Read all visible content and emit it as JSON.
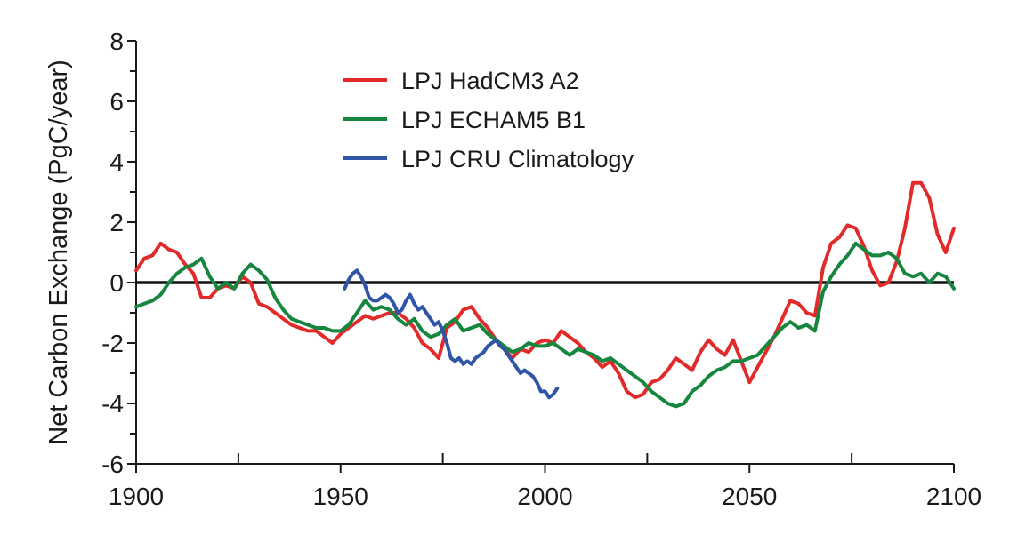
{
  "chart_data": {
    "type": "line",
    "title": "",
    "xlabel": "",
    "ylabel": "Net Carbon Exchange (PgC/year)",
    "xlim": [
      1900,
      2100
    ],
    "ylim": [
      -6,
      8
    ],
    "x_ticks": [
      "1900",
      "1950",
      "2000",
      "2050",
      "2100"
    ],
    "y_ticks": [
      "8",
      "6",
      "4",
      "2",
      "0",
      "-2",
      "-4",
      "-6"
    ],
    "x_tick_values": [
      1900,
      1950,
      2000,
      2050,
      2100
    ],
    "y_tick_values": [
      8,
      6,
      4,
      2,
      0,
      -2,
      -4,
      -6
    ],
    "x_minor_ticks": [
      1925,
      1975,
      2025,
      2075
    ],
    "y_minor_ticks": [
      7,
      5,
      3,
      1,
      -1,
      -3,
      -5
    ],
    "reference_line": 0,
    "grid": false,
    "legend_position": "top-center",
    "series": [
      {
        "name": "LPJ HadCM3 A2",
        "color": "#e32a2a",
        "x": [
          1900,
          1902,
          1904,
          1906,
          1908,
          1910,
          1912,
          1914,
          1916,
          1918,
          1920,
          1922,
          1924,
          1926,
          1928,
          1930,
          1932,
          1934,
          1936,
          1938,
          1940,
          1942,
          1944,
          1946,
          1948,
          1950,
          1952,
          1954,
          1956,
          1958,
          1960,
          1962,
          1964,
          1966,
          1968,
          1970,
          1972,
          1974,
          1976,
          1978,
          1980,
          1982,
          1984,
          1986,
          1988,
          1990,
          1992,
          1994,
          1996,
          1998,
          2000,
          2002,
          2004,
          2006,
          2008,
          2010,
          2012,
          2014,
          2016,
          2018,
          2020,
          2022,
          2024,
          2026,
          2028,
          2030,
          2032,
          2034,
          2036,
          2038,
          2040,
          2042,
          2044,
          2046,
          2048,
          2050,
          2052,
          2054,
          2056,
          2058,
          2060,
          2062,
          2064,
          2066,
          2068,
          2070,
          2072,
          2074,
          2076,
          2078,
          2080,
          2082,
          2084,
          2086,
          2088,
          2090,
          2092,
          2094,
          2096,
          2098,
          2100
        ],
        "values": [
          0.4,
          0.8,
          0.9,
          1.3,
          1.1,
          1.0,
          0.6,
          0.3,
          -0.5,
          -0.5,
          -0.2,
          -0.1,
          -0.2,
          0.2,
          0.0,
          -0.7,
          -0.8,
          -1.0,
          -1.2,
          -1.4,
          -1.5,
          -1.6,
          -1.6,
          -1.8,
          -2.0,
          -1.7,
          -1.5,
          -1.3,
          -1.1,
          -1.2,
          -1.1,
          -1.0,
          -1.0,
          -1.2,
          -1.5,
          -2.0,
          -2.2,
          -2.5,
          -1.5,
          -1.3,
          -0.9,
          -0.8,
          -1.2,
          -1.5,
          -1.9,
          -2.2,
          -2.5,
          -2.2,
          -2.3,
          -2.0,
          -1.9,
          -2.0,
          -1.6,
          -1.8,
          -2.0,
          -2.3,
          -2.5,
          -2.8,
          -2.6,
          -3.0,
          -3.6,
          -3.8,
          -3.7,
          -3.3,
          -3.2,
          -2.9,
          -2.5,
          -2.7,
          -2.9,
          -2.3,
          -1.9,
          -2.2,
          -2.4,
          -1.9,
          -2.6,
          -3.3,
          -2.8,
          -2.3,
          -1.8,
          -1.2,
          -0.6,
          -0.7,
          -1.0,
          -1.1,
          0.5,
          1.3,
          1.5,
          1.9,
          1.8,
          1.2,
          0.4,
          -0.1,
          0.0,
          0.7,
          1.8,
          3.3,
          3.3,
          2.8,
          1.6,
          1.0,
          1.8
        ]
      },
      {
        "name": "LPJ ECHAM5 B1",
        "color": "#16863f",
        "x": [
          1900,
          1902,
          1904,
          1906,
          1908,
          1910,
          1912,
          1914,
          1916,
          1918,
          1920,
          1922,
          1924,
          1926,
          1928,
          1930,
          1932,
          1934,
          1936,
          1938,
          1940,
          1942,
          1944,
          1946,
          1948,
          1950,
          1952,
          1954,
          1956,
          1958,
          1960,
          1962,
          1964,
          1966,
          1968,
          1970,
          1972,
          1974,
          1976,
          1978,
          1980,
          1982,
          1984,
          1986,
          1988,
          1990,
          1992,
          1994,
          1996,
          1998,
          2000,
          2002,
          2004,
          2006,
          2008,
          2010,
          2012,
          2014,
          2016,
          2018,
          2020,
          2022,
          2024,
          2026,
          2028,
          2030,
          2032,
          2034,
          2036,
          2038,
          2040,
          2042,
          2044,
          2046,
          2048,
          2050,
          2052,
          2054,
          2056,
          2058,
          2060,
          2062,
          2064,
          2066,
          2068,
          2070,
          2072,
          2074,
          2076,
          2078,
          2080,
          2082,
          2084,
          2086,
          2088,
          2090,
          2092,
          2094,
          2096,
          2098,
          2100
        ],
        "values": [
          -0.8,
          -0.7,
          -0.6,
          -0.4,
          0.0,
          0.3,
          0.5,
          0.6,
          0.8,
          0.2,
          -0.2,
          0.0,
          -0.2,
          0.3,
          0.6,
          0.4,
          0.1,
          -0.5,
          -0.9,
          -1.2,
          -1.3,
          -1.4,
          -1.5,
          -1.5,
          -1.6,
          -1.6,
          -1.4,
          -1.0,
          -0.6,
          -0.9,
          -0.8,
          -0.9,
          -1.2,
          -1.4,
          -1.2,
          -1.6,
          -1.8,
          -1.7,
          -1.4,
          -1.2,
          -1.6,
          -1.5,
          -1.4,
          -1.7,
          -1.9,
          -2.1,
          -2.3,
          -2.2,
          -2.0,
          -2.1,
          -2.1,
          -2.0,
          -2.2,
          -2.4,
          -2.2,
          -2.3,
          -2.4,
          -2.6,
          -2.5,
          -2.7,
          -2.9,
          -3.1,
          -3.3,
          -3.6,
          -3.8,
          -4.0,
          -4.1,
          -4.0,
          -3.6,
          -3.4,
          -3.1,
          -2.9,
          -2.8,
          -2.6,
          -2.6,
          -2.5,
          -2.4,
          -2.1,
          -1.8,
          -1.5,
          -1.3,
          -1.5,
          -1.4,
          -1.6,
          -0.3,
          0.2,
          0.6,
          0.9,
          1.3,
          1.1,
          0.9,
          0.9,
          1.0,
          0.8,
          0.3,
          0.2,
          0.3,
          0.0,
          0.3,
          0.2,
          -0.2
        ]
      },
      {
        "name": "LPJ CRU Climatology",
        "color": "#2e55a6",
        "x": [
          1951,
          1952,
          1953,
          1954,
          1955,
          1956,
          1957,
          1958,
          1959,
          1960,
          1961,
          1962,
          1963,
          1964,
          1965,
          1966,
          1967,
          1968,
          1969,
          1970,
          1971,
          1972,
          1973,
          1974,
          1975,
          1976,
          1977,
          1978,
          1979,
          1980,
          1981,
          1982,
          1983,
          1984,
          1985,
          1986,
          1987,
          1988,
          1989,
          1990,
          1991,
          1992,
          1993,
          1994,
          1995,
          1996,
          1997,
          1998,
          1999,
          2000,
          2001,
          2002,
          2003
        ],
        "values": [
          -0.2,
          0.1,
          0.3,
          0.4,
          0.2,
          -0.1,
          -0.5,
          -0.6,
          -0.6,
          -0.5,
          -0.4,
          -0.5,
          -0.7,
          -1.0,
          -0.9,
          -0.6,
          -0.4,
          -0.7,
          -0.9,
          -0.8,
          -1.0,
          -1.2,
          -1.4,
          -1.3,
          -1.6,
          -2.0,
          -2.5,
          -2.6,
          -2.5,
          -2.7,
          -2.6,
          -2.7,
          -2.5,
          -2.4,
          -2.3,
          -2.1,
          -2.0,
          -1.9,
          -2.1,
          -2.2,
          -2.4,
          -2.6,
          -2.8,
          -3.0,
          -2.9,
          -3.0,
          -3.1,
          -3.3,
          -3.6,
          -3.6,
          -3.8,
          -3.7,
          -3.5
        ]
      }
    ]
  }
}
